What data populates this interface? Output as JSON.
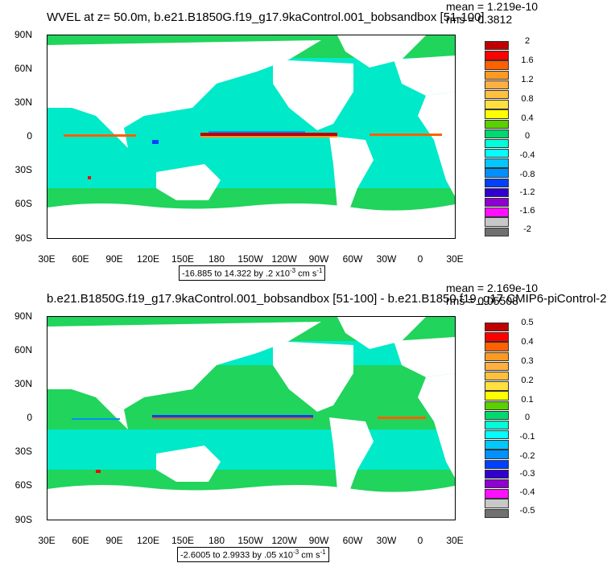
{
  "panel1": {
    "title": "WVEL at z=  50.0m, b.e21.B1850G.f19_g17.9kaControl.001_bobsandbox [51-100]",
    "mean": "mean = 1.219e-10",
    "rms": "rms = 0.3812",
    "range_text": "-16.885 to 14.322 by .2 x10",
    "range_exp": "-3",
    "range_unit": " cm s",
    "range_unit_exp": "-1",
    "colorbar_labels": [
      "2",
      "1.6",
      "1.2",
      "0.8",
      "0.4",
      "0",
      "-0.4",
      "-0.8",
      "-1.2",
      "-1.6",
      "-2"
    ]
  },
  "panel2": {
    "title": "b.e21.B1850G.f19_g17.9kaControl.001_bobsandbox [51-100] - b.e21.B1850.f19_g17.CMIP6-piControl-2",
    "mean": "mean = 2.169e-10",
    "rms": "rms = 0.05508",
    "range_text": "-2.6005 to 2.9933 by .05 x10",
    "range_exp": "-3",
    "range_unit": " cm s",
    "range_unit_exp": "-1",
    "colorbar_labels": [
      "0.5",
      "0.4",
      "0.3",
      "0.2",
      "0.1",
      "0",
      "-0.1",
      "-0.2",
      "-0.3",
      "-0.4",
      "-0.5"
    ]
  },
  "lat_labels": [
    "90N",
    "60N",
    "30N",
    "0",
    "30S",
    "60S",
    "90S"
  ],
  "lon_labels": [
    "30E",
    "60E",
    "90E",
    "120E",
    "150E",
    "180",
    "150W",
    "120W",
    "90W",
    "60W",
    "30W",
    "0",
    "30E"
  ],
  "colors": {
    "ocean_base": "#00e9c8",
    "ocean_green": "#20d45c",
    "land": "#ffffff",
    "colorbar": [
      "#c00000",
      "#ff0000",
      "#ff6000",
      "#ff9a20",
      "#ffc040",
      "#ffff00",
      "#5ad000",
      "#00d870",
      "#00ffd8",
      "#00c8ff",
      "#0090ff",
      "#0040ff",
      "#3000d0",
      "#9000d0",
      "#ff10ff",
      "#c8c8c8",
      "#707070"
    ]
  }
}
